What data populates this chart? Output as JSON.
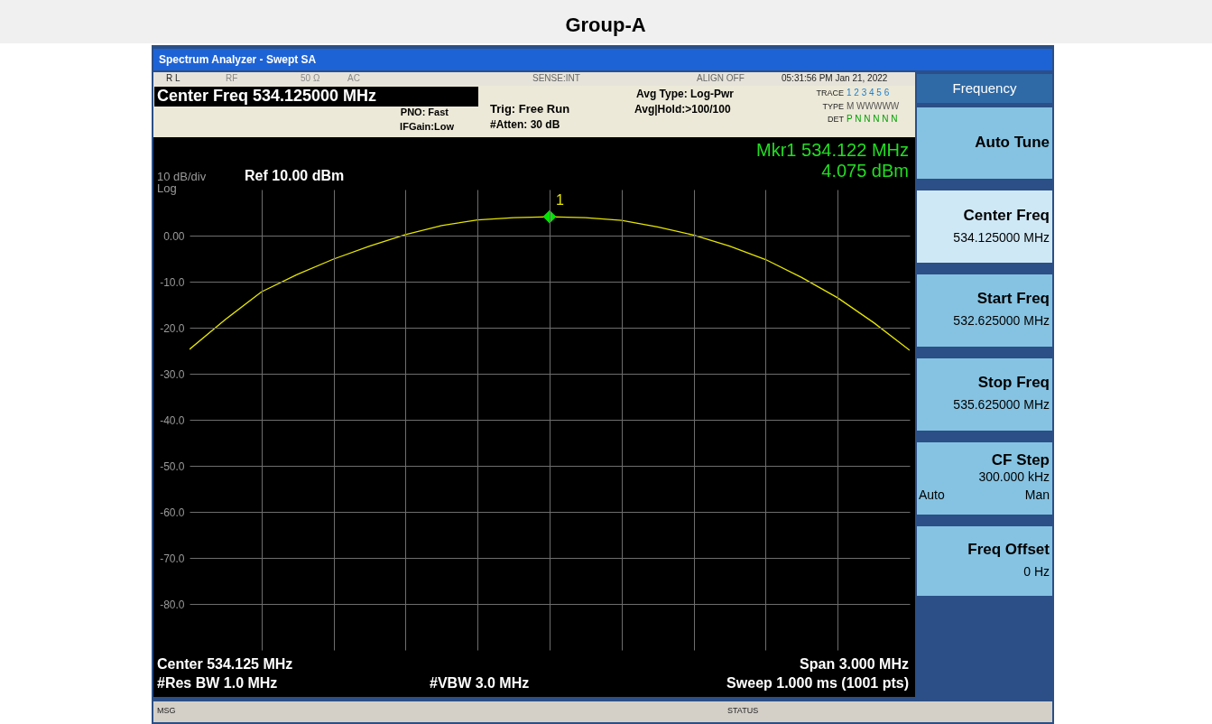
{
  "chart_data": {
    "type": "line",
    "title": "Group-A",
    "categories": [
      null,
      null,
      null,
      null,
      null,
      null,
      null,
      null,
      null,
      null,
      null,
      null,
      null,
      null,
      null,
      null,
      null,
      null,
      null,
      null,
      null
    ],
    "series": [
      {
        "color": "#e6e600",
        "marker": "none",
        "line_style": "solid",
        "values": [
          -24.7,
          -18.2,
          -12.2,
          -8.4,
          -5.1,
          -2.3,
          0.2,
          2.2,
          3.4,
          3.9,
          4.1,
          3.9,
          3.3,
          1.9,
          0.1,
          -2.3,
          -5.2,
          -9.1,
          -13.5,
          -18.9,
          -24.9
        ]
      },
      {
        "type": "scatter",
        "color": "#00e600",
        "marker": "diamond",
        "values": [
          null,
          null,
          null,
          null,
          null,
          null,
          null,
          null,
          null,
          null,
          4.1,
          null,
          null,
          null,
          null,
          null,
          null,
          null,
          null,
          null,
          null
        ]
      }
    ],
    "ylim": [
      -90,
      10
    ],
    "yticks": [
      {
        "value": 0,
        "label": "0.00"
      },
      {
        "value": -10,
        "label": "-10.0"
      },
      {
        "value": -20,
        "label": "-20.0"
      },
      {
        "value": -30,
        "label": "-30.0"
      },
      {
        "value": -40,
        "label": "-40.0"
      },
      {
        "value": -50,
        "label": "-50.0"
      },
      {
        "value": -60,
        "label": "-60.0"
      },
      {
        "value": -70,
        "label": "-70.0"
      },
      {
        "value": -80,
        "label": "-80.0"
      }
    ],
    "tick_labels": "y",
    "grid": true,
    "legend": false,
    "annotations": [
      "Spectrum Analyzer - Swept SA",
      "R L",
      "RF",
      "50 Ω",
      "AC",
      "SENSE:INT",
      "ALIGN OFF",
      "05:31:56 PM Jan 21, 2022",
      "Center Freq 534.125000 MHz",
      "PNO: Fast",
      "IFGain:Low",
      "Trig: Free Run",
      "#Atten: 30 dB",
      "Avg Type: Log-Pwr",
      "Avg|Hold:>100/100",
      "TRACE",
      "1 2 3 4 5 6",
      "TYPE",
      "M WWWWW",
      "DET",
      "P N N N N N",
      "Mkr1 534.122 MHz",
      "4.075 dBm",
      "10 dB/div",
      "Log",
      "Ref 10.00 dBm",
      "Center 534.125 MHz",
      "#Res BW 1.0 MHz",
      "#VBW 3.0 MHz",
      "Span 3.000 MHz",
      "Sweep  1.000 ms (1001 pts)",
      "MSG",
      "STATUS",
      "Frequency",
      "Auto Tune",
      "Center Freq",
      "534.125000 MHz",
      "Start Freq",
      "532.625000 MHz",
      "Stop Freq",
      "535.625000 MHz",
      "CF Step",
      "300.000 kHz",
      "Auto",
      "Man",
      "Freq Offset",
      "0 Hz",
      "1"
    ]
  }
}
